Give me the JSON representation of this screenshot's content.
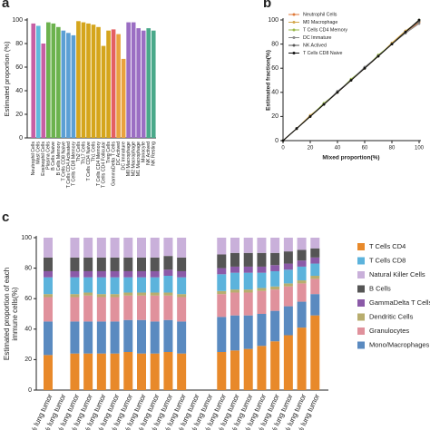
{
  "chart_data": [
    {
      "type": "bar",
      "panel_label": "a",
      "ylabel": "Estimated proportion (%)",
      "categories": [
        "Neutrophil Cells",
        "Mast Cells",
        "Eosinophil Cells",
        "Plasma Cells",
        "B Cells Naive",
        "B Cells Memory",
        "T Cells CD8 Naive",
        "T Cells CD4 Activated",
        "T Cells CD8 Memory",
        "Th2 Cells",
        "Th17 Cells",
        "T Cells CD4 Naive",
        "Th1 Cells",
        "T Cells CD4 Memory",
        "T Cells CD4 Follicular",
        "Treg Cells",
        "GammaDelta T Cells",
        "DC Actived",
        "DC Immature",
        "M0 Macrophage",
        "M2 Macrophage",
        "M1 Macrophage",
        "Monocyte",
        "NK Actived",
        "NK Resting"
      ],
      "values": [
        97,
        95,
        80,
        98,
        97,
        94,
        91,
        89,
        87,
        99,
        98,
        97,
        96,
        94,
        78,
        91,
        92,
        88,
        67,
        98,
        98,
        93,
        91,
        93,
        91
      ],
      "colors": [
        "#c75fa3",
        "#5fb9dc",
        "#c75fa3",
        "#6cb24e",
        "#6cb24e",
        "#6cb24e",
        "#5b9fd4",
        "#5b9fd4",
        "#5b9fd4",
        "#d5a51c",
        "#d5a51c",
        "#d5a51c",
        "#d5a51c",
        "#d5a51c",
        "#d5a51c",
        "#d5a51c",
        "#e45f62",
        "#e9a23e",
        "#e9a23e",
        "#9b6ec3",
        "#9b6ec3",
        "#9b6ec3",
        "#9b6ec3",
        "#4aa98a",
        "#4aa98a"
      ],
      "ylim": [
        0,
        100
      ],
      "yticks": [
        0,
        20,
        40,
        60,
        80,
        100
      ]
    },
    {
      "type": "line",
      "panel_label": "b",
      "xlabel": "Mixed proportion(%)",
      "ylabel": "Estimated fraction(%)",
      "x": [
        0,
        10,
        20,
        30,
        40,
        50,
        60,
        70,
        80,
        90,
        100
      ],
      "series": [
        {
          "name": "Neutrophil Cells",
          "color": "#e07a3a",
          "values": [
            0,
            10,
            20,
            30,
            40,
            50,
            60,
            70,
            80,
            90,
            98
          ]
        },
        {
          "name": "M0 Macrophage",
          "color": "#d4a64a",
          "values": [
            0,
            10,
            21,
            30,
            40,
            50,
            60,
            70,
            81,
            91,
            99
          ]
        },
        {
          "name": "T Cells CD4 Memory",
          "color": "#9ab84a",
          "values": [
            0,
            10,
            20,
            31,
            40,
            51,
            60,
            71,
            80,
            90,
            100
          ]
        },
        {
          "name": "DC Immature",
          "color": "#8a8a8a",
          "values": [
            0,
            10,
            20,
            30,
            41,
            50,
            61,
            70,
            80,
            89,
            97
          ]
        },
        {
          "name": "NK Actived",
          "color": "#555555",
          "values": [
            0,
            10,
            20,
            30,
            40,
            50,
            60,
            70,
            80,
            90,
            99
          ]
        },
        {
          "name": "T Cells CD8 Naive",
          "color": "#111111",
          "values": [
            0,
            10,
            20,
            30,
            40,
            50,
            60,
            70,
            80,
            90,
            100
          ]
        }
      ],
      "xlim": [
        0,
        100
      ],
      "xticks": [
        0,
        20,
        40,
        60,
        80,
        100
      ],
      "ylim": [
        0,
        100
      ],
      "yticks": [
        0,
        20,
        40,
        60,
        80,
        100
      ],
      "legend": "upper left"
    },
    {
      "type": "stacked_bar",
      "panel_label": "c",
      "ylabel": [
        "Estimated proportion of each",
        "immune cells(%)"
      ],
      "categories": [
        "% lung tumor",
        "% lung tumor",
        "% lung tumor",
        "% lung tumor",
        "% lung tumor",
        "% lung tumor",
        "% lung tumor",
        "% lung tumor",
        "% lung tumor",
        "% lung tumor",
        "% lung tumor",
        "% lung tumor",
        "% lung tumor",
        "% lung tumor",
        "% lung tumor",
        "% lung tumor",
        "% lung tumor",
        "% lung tumor",
        "% lung tumor",
        "% lung tumor",
        "% lung tumor"
      ],
      "series": [
        {
          "name": "T Cells CD4",
          "color": "#e8892a",
          "values": [
            23,
            null,
            24,
            24,
            24,
            24,
            25,
            24,
            24,
            25,
            24,
            null,
            null,
            25,
            26,
            27,
            29,
            32,
            36,
            41,
            49
          ]
        },
        {
          "name": "Mono/Macrophages",
          "color": "#5a8ac0",
          "values": [
            22,
            null,
            21,
            21,
            21,
            21,
            21,
            22,
            21,
            21,
            21,
            null,
            null,
            23,
            23,
            22,
            21,
            20,
            19,
            17,
            14
          ]
        },
        {
          "name": "Granulocytes",
          "color": "#e0919c",
          "values": [
            16,
            null,
            16,
            17,
            16,
            16,
            16,
            16,
            17,
            16,
            16,
            null,
            null,
            15,
            15,
            15,
            15,
            14,
            13,
            12,
            10
          ]
        },
        {
          "name": "Dendritic Cells",
          "color": "#b8ad6e",
          "values": [
            2,
            null,
            2,
            2,
            2,
            2,
            2,
            2,
            2,
            2,
            2,
            null,
            null,
            2,
            2,
            2,
            2,
            2,
            2,
            2,
            2
          ]
        },
        {
          "name": "T Cells CD8",
          "color": "#5cb3dc",
          "values": [
            11,
            null,
            11,
            10,
            11,
            11,
            10,
            10,
            10,
            11,
            11,
            null,
            null,
            11,
            11,
            11,
            10,
            10,
            9,
            9,
            8
          ]
        },
        {
          "name": "GammaDelta T Cells",
          "color": "#8b5aa8",
          "values": [
            4,
            null,
            4,
            4,
            4,
            4,
            4,
            4,
            4,
            4,
            4,
            null,
            null,
            4,
            4,
            4,
            4,
            4,
            4,
            4,
            4
          ]
        },
        {
          "name": "B Cells",
          "color": "#555555",
          "values": [
            9,
            null,
            9,
            9,
            9,
            9,
            9,
            9,
            9,
            9,
            9,
            null,
            null,
            9,
            9,
            9,
            9,
            8,
            8,
            7,
            6
          ]
        },
        {
          "name": "Natural Killer Cells",
          "color": "#c9b0da",
          "values": [
            13,
            null,
            13,
            13,
            13,
            13,
            13,
            13,
            13,
            12,
            13,
            null,
            null,
            11,
            10,
            10,
            10,
            10,
            9,
            8,
            7
          ]
        }
      ],
      "legend_order": [
        0,
        4,
        7,
        6,
        5,
        3,
        2,
        1
      ],
      "ylim": [
        0,
        100
      ],
      "yticks": [
        0,
        20,
        40,
        60,
        80,
        100
      ]
    }
  ]
}
